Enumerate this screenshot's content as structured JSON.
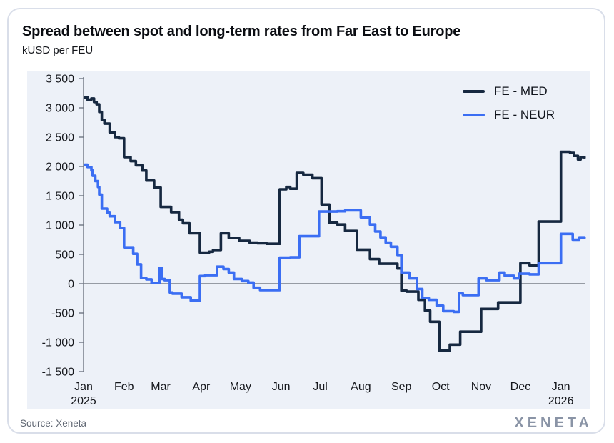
{
  "card": {
    "title": "Spread between spot and long-term rates from Far East to Europe",
    "subtitle": "kUSD per FEU",
    "source": "Source: Xeneta",
    "brand": "XENETA"
  },
  "colors": {
    "panel_background": "#edf1f8",
    "card_background": "#ffffff",
    "card_border": "#d9dee9",
    "axis": "#6e7682",
    "zero_line": "#40454f",
    "tick_text": "#15171c",
    "med_line": "#162840",
    "neur_line": "#3b6ef3"
  },
  "chart_data": {
    "type": "line",
    "step_interpolation": true,
    "title": "Spread between spot and long-term rates from Far East to Europe",
    "ylabel": "kUSD per FEU",
    "ylim": [
      -1500,
      3500
    ],
    "x_domain_days": [
      0,
      383
    ],
    "grid": "zero-line-only",
    "legend_position": "top-right",
    "y_ticks": [
      {
        "value": 3500,
        "label": "3 500"
      },
      {
        "value": 3000,
        "label": "3 000"
      },
      {
        "value": 2500,
        "label": "2 500"
      },
      {
        "value": 2000,
        "label": "2 000"
      },
      {
        "value": 1500,
        "label": "1 500"
      },
      {
        "value": 1000,
        "label": "1 000"
      },
      {
        "value": 500,
        "label": "500"
      },
      {
        "value": 0,
        "label": "0"
      },
      {
        "value": -500,
        "label": "-500"
      },
      {
        "value": -1000,
        "label": "-1 000"
      },
      {
        "value": -1500,
        "label": "-1 500"
      }
    ],
    "x_months": [
      {
        "label": "Jan",
        "sublabel": "2025",
        "day": 0
      },
      {
        "label": "Feb",
        "day": 31
      },
      {
        "label": "Mar",
        "day": 59
      },
      {
        "label": "Apr",
        "day": 90
      },
      {
        "label": "May",
        "day": 120
      },
      {
        "label": "Jun",
        "day": 151
      },
      {
        "label": "Jul",
        "day": 181
      },
      {
        "label": "Aug",
        "day": 212
      },
      {
        "label": "Sep",
        "day": 243
      },
      {
        "label": "Oct",
        "day": 273
      },
      {
        "label": "Nov",
        "day": 304
      },
      {
        "label": "Dec",
        "day": 334
      },
      {
        "label": "Jan",
        "sublabel": "2026",
        "day": 365
      }
    ],
    "series": [
      {
        "name": "FE - MED",
        "color": "#162840",
        "points": [
          [
            1,
            3180
          ],
          [
            3,
            3140
          ],
          [
            6,
            3160
          ],
          [
            8,
            3100
          ],
          [
            10,
            3060
          ],
          [
            12,
            2930
          ],
          [
            14,
            2790
          ],
          [
            16,
            2730
          ],
          [
            20,
            2580
          ],
          [
            24,
            2500
          ],
          [
            27,
            2480
          ],
          [
            31,
            2160
          ],
          [
            36,
            2090
          ],
          [
            40,
            2020
          ],
          [
            45,
            1930
          ],
          [
            48,
            1760
          ],
          [
            54,
            1640
          ],
          [
            59,
            1310
          ],
          [
            67,
            1220
          ],
          [
            73,
            1090
          ],
          [
            76,
            1030
          ],
          [
            81,
            860
          ],
          [
            89,
            530
          ],
          [
            96,
            545
          ],
          [
            99,
            575
          ],
          [
            105,
            860
          ],
          [
            111,
            780
          ],
          [
            119,
            730
          ],
          [
            127,
            700
          ],
          [
            133,
            690
          ],
          [
            140,
            680
          ],
          [
            150,
            1610
          ],
          [
            155,
            1650
          ],
          [
            158,
            1620
          ],
          [
            163,
            1890
          ],
          [
            168,
            1860
          ],
          [
            175,
            1800
          ],
          [
            182,
            1350
          ],
          [
            188,
            1040
          ],
          [
            194,
            1010
          ],
          [
            200,
            900
          ],
          [
            209,
            580
          ],
          [
            219,
            420
          ],
          [
            226,
            340
          ],
          [
            240,
            260
          ],
          [
            243,
            -120
          ],
          [
            247,
            -135
          ],
          [
            256,
            -275
          ],
          [
            261,
            -460
          ],
          [
            265,
            -650
          ],
          [
            272,
            -1140
          ],
          [
            280,
            -1040
          ],
          [
            288,
            -820
          ],
          [
            304,
            -430
          ],
          [
            317,
            -320
          ],
          [
            334,
            350
          ],
          [
            341,
            315
          ],
          [
            348,
            1060
          ],
          [
            365,
            2250
          ],
          [
            372,
            2230
          ],
          [
            375,
            2180
          ],
          [
            378,
            2120
          ],
          [
            380,
            2160
          ],
          [
            383,
            2150
          ]
        ]
      },
      {
        "name": "FE - NEUR",
        "color": "#3b6ef3",
        "points": [
          [
            1,
            2030
          ],
          [
            3,
            1990
          ],
          [
            6,
            1930
          ],
          [
            7,
            1840
          ],
          [
            9,
            1750
          ],
          [
            11,
            1650
          ],
          [
            12,
            1520
          ],
          [
            14,
            1280
          ],
          [
            18,
            1210
          ],
          [
            20,
            1150
          ],
          [
            24,
            1050
          ],
          [
            28,
            950
          ],
          [
            31,
            620
          ],
          [
            38,
            510
          ],
          [
            41,
            330
          ],
          [
            44,
            95
          ],
          [
            48,
            75
          ],
          [
            52,
            10
          ],
          [
            58,
            270
          ],
          [
            60,
            80
          ],
          [
            62,
            60
          ],
          [
            66,
            -150
          ],
          [
            68,
            -170
          ],
          [
            75,
            -230
          ],
          [
            82,
            -290
          ],
          [
            89,
            130
          ],
          [
            93,
            145
          ],
          [
            102,
            290
          ],
          [
            107,
            250
          ],
          [
            111,
            190
          ],
          [
            115,
            80
          ],
          [
            121,
            45
          ],
          [
            126,
            20
          ],
          [
            130,
            -70
          ],
          [
            135,
            -110
          ],
          [
            143,
            -110
          ],
          [
            150,
            445
          ],
          [
            158,
            450
          ],
          [
            165,
            810
          ],
          [
            180,
            1230
          ],
          [
            194,
            1235
          ],
          [
            200,
            1250
          ],
          [
            212,
            1130
          ],
          [
            219,
            1010
          ],
          [
            223,
            890
          ],
          [
            227,
            790
          ],
          [
            231,
            700
          ],
          [
            235,
            630
          ],
          [
            240,
            490
          ],
          [
            243,
            190
          ],
          [
            249,
            90
          ],
          [
            255,
            -90
          ],
          [
            259,
            -245
          ],
          [
            264,
            -275
          ],
          [
            270,
            -375
          ],
          [
            275,
            -470
          ],
          [
            283,
            -480
          ],
          [
            287,
            -165
          ],
          [
            290,
            -195
          ],
          [
            302,
            90
          ],
          [
            308,
            60
          ],
          [
            318,
            190
          ],
          [
            322,
            135
          ],
          [
            329,
            90
          ],
          [
            333,
            170
          ],
          [
            341,
            160
          ],
          [
            348,
            350
          ],
          [
            365,
            850
          ],
          [
            374,
            750
          ],
          [
            379,
            790
          ],
          [
            383,
            780
          ]
        ]
      }
    ]
  }
}
